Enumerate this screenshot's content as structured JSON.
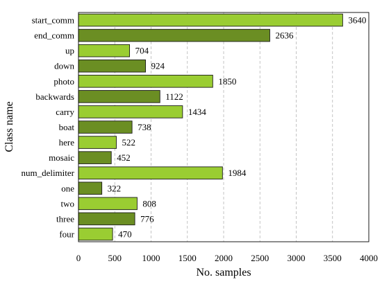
{
  "chart_data": {
    "type": "bar",
    "orientation": "horizontal",
    "title": "",
    "xlabel": "No. samples",
    "ylabel": "Class name",
    "xlim": [
      0,
      4000
    ],
    "xticks": [
      0,
      500,
      1000,
      1500,
      2000,
      2500,
      3000,
      3500,
      4000
    ],
    "grid": "vertical dashed",
    "categories": [
      "start_comm",
      "end_comm",
      "up",
      "down",
      "photo",
      "backwards",
      "carry",
      "boat",
      "here",
      "mosaic",
      "num_delimiter",
      "one",
      "two",
      "three",
      "four"
    ],
    "values": [
      3640,
      2636,
      704,
      924,
      1850,
      1122,
      1434,
      738,
      522,
      452,
      1984,
      322,
      808,
      776,
      470
    ],
    "colors": [
      "#9acd32",
      "#6b8e23"
    ]
  }
}
